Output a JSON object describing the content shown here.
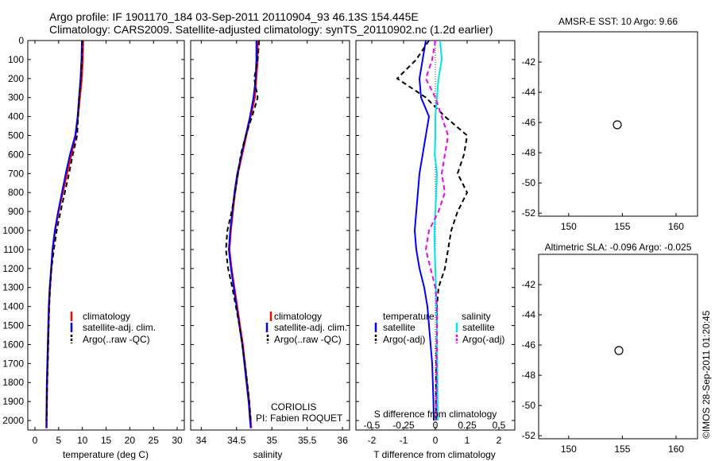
{
  "header": {
    "title_line1": "Argo profile: IF 1901170_184 03-Sep-2011 20110904_93 46.13S 154.445E",
    "title_line2": "Climatology: CARS2009. Satellite-adjusted climatology: synTS_20110902.nc (1.2d earlier)"
  },
  "credits": {
    "line1": "CORIOLIS",
    "line2": "PI: Fabien ROQUET",
    "stamp": "©IMOS 28-Sep-2011 01:20:45"
  },
  "colors": {
    "climatology": "#ff0000",
    "satellite": "#0000ff",
    "argo": "#000000",
    "salinity_satellite": "#00e5ee",
    "salinity_argo": "#ee00ee"
  },
  "chart_data": [
    {
      "id": "temperature",
      "type": "line",
      "xlabel": "temperature (deg C)",
      "xlim": [
        -1.5,
        31.5
      ],
      "xticks": [
        0,
        5,
        10,
        15,
        20,
        25,
        30
      ],
      "ylim": [
        2050,
        0
      ],
      "yticks": [
        0,
        100,
        200,
        300,
        400,
        500,
        600,
        700,
        800,
        900,
        1000,
        1100,
        1200,
        1300,
        1400,
        1500,
        1600,
        1700,
        1800,
        1900,
        2000
      ],
      "legend": [
        "climatology",
        "satellite-adj. clim.",
        "Argo(..raw -QC)"
      ],
      "series": [
        {
          "name": "climatology",
          "color": "#ff0000",
          "style": "solid",
          "x": [
            10.2,
            10.1,
            9.9,
            9.5,
            9.1,
            8.6,
            7.7,
            6.8,
            5.9,
            5.0,
            4.3,
            3.8,
            3.5,
            3.2,
            3.0,
            2.9,
            2.8,
            2.7,
            2.6,
            2.55,
            2.5,
            2.5
          ],
          "y": [
            0,
            100,
            200,
            300,
            400,
            500,
            600,
            700,
            800,
            900,
            1000,
            1100,
            1200,
            1300,
            1400,
            1500,
            1600,
            1700,
            1800,
            1900,
            2000,
            2040
          ]
        },
        {
          "name": "satellite-adj. clim.",
          "color": "#0000ff",
          "style": "solid",
          "x": [
            9.9,
            9.8,
            9.6,
            9.3,
            9.0,
            8.5,
            7.4,
            6.5,
            5.7,
            4.9,
            4.2,
            3.7,
            3.4,
            3.1,
            2.9,
            2.8,
            2.7,
            2.6,
            2.5,
            2.45,
            2.4,
            2.4
          ],
          "y": [
            0,
            100,
            200,
            300,
            400,
            500,
            600,
            700,
            800,
            900,
            1000,
            1100,
            1200,
            1300,
            1400,
            1500,
            1600,
            1700,
            1800,
            1900,
            2000,
            2040
          ]
        },
        {
          "name": "Argo(..raw -QC)",
          "color": "#000000",
          "style": "dashed",
          "x": [
            10.0,
            9.9,
            9.7,
            9.3,
            9.1,
            8.9,
            8.0,
            7.2,
            6.3,
            5.4,
            4.6,
            4.0,
            3.5,
            3.2,
            3.0,
            2.9,
            2.8,
            2.7,
            2.6,
            2.5,
            2.5
          ],
          "y": [
            0,
            100,
            200,
            300,
            400,
            500,
            600,
            700,
            800,
            900,
            1000,
            1100,
            1200,
            1300,
            1400,
            1500,
            1600,
            1700,
            1800,
            1900,
            2000
          ]
        }
      ]
    },
    {
      "id": "salinity",
      "type": "line",
      "xlabel": "salinity",
      "xlim": [
        33.85,
        36.1
      ],
      "xticks": [
        34,
        34.5,
        35,
        35.5,
        36
      ],
      "ylim": [
        2050,
        0
      ],
      "legend": [
        "climatology",
        "satellite-adj. clim.",
        "Argo(..raw -QC)"
      ],
      "series": [
        {
          "name": "climatology",
          "color": "#ff0000",
          "style": "solid",
          "x": [
            34.8,
            34.8,
            34.78,
            34.76,
            34.7,
            34.64,
            34.58,
            34.52,
            34.48,
            34.45,
            34.42,
            34.4,
            34.43,
            34.47,
            34.51,
            34.55,
            34.59,
            34.62,
            34.65,
            34.68,
            34.7,
            34.71
          ],
          "y": [
            0,
            100,
            200,
            300,
            400,
            500,
            600,
            700,
            800,
            900,
            1000,
            1100,
            1200,
            1300,
            1400,
            1500,
            1600,
            1700,
            1800,
            1900,
            2000,
            2040
          ]
        },
        {
          "name": "satellite-adj. clim.",
          "color": "#0000ff",
          "style": "solid",
          "x": [
            34.78,
            34.78,
            34.77,
            34.74,
            34.69,
            34.63,
            34.57,
            34.51,
            34.47,
            34.44,
            34.41,
            34.39,
            34.42,
            34.46,
            34.5,
            34.54,
            34.58,
            34.61,
            34.64,
            34.67,
            34.69,
            34.7
          ],
          "y": [
            0,
            100,
            200,
            300,
            400,
            500,
            600,
            700,
            800,
            900,
            1000,
            1100,
            1200,
            1300,
            1400,
            1500,
            1600,
            1700,
            1800,
            1900,
            2000,
            2040
          ]
        },
        {
          "name": "Argo(..raw -QC)",
          "color": "#000000",
          "style": "dashed",
          "x": [
            34.82,
            34.8,
            34.75,
            34.8,
            34.72,
            34.63,
            34.56,
            34.52,
            34.48,
            34.43,
            34.37,
            34.35,
            34.38,
            34.44,
            34.49,
            34.54,
            34.58,
            34.62,
            34.65,
            34.68,
            34.7
          ],
          "y": [
            0,
            100,
            200,
            300,
            400,
            500,
            600,
            700,
            800,
            900,
            1000,
            1100,
            1200,
            1300,
            1400,
            1500,
            1600,
            1700,
            1800,
            1900,
            2000
          ]
        }
      ]
    },
    {
      "id": "difference",
      "type": "line",
      "xlabel": "T difference from climatology",
      "x2label": "S difference from climatology",
      "xlim": [
        -2.5,
        2.5
      ],
      "xticks": [
        -2,
        -1,
        0,
        1,
        2
      ],
      "xtick_labels": [
        "-2",
        "-1",
        "0",
        "1",
        "2"
      ],
      "x2ticks": [
        -0.5,
        -0.25,
        0,
        0.25,
        0.5
      ],
      "x2tick_labels": [
        "-0.5",
        "-0.25",
        "0",
        "0.25",
        "0.5"
      ],
      "ylim": [
        2050,
        0
      ],
      "legend_groups": [
        {
          "title": "temperature",
          "entries": [
            "satellite",
            "Argo(-adj)"
          ]
        },
        {
          "title": "salinity",
          "entries": [
            "satellite",
            "Argo(-adj)"
          ]
        }
      ],
      "series": [
        {
          "name": "temperature satellite",
          "color": "#0000ff",
          "style": "solid",
          "x": [
            -0.3,
            -0.4,
            -0.5,
            -0.45,
            -0.2,
            -0.3,
            -0.4,
            -0.5,
            -0.55,
            -0.6,
            -0.65,
            -0.6,
            -0.5,
            -0.35,
            -0.25,
            -0.2,
            -0.15,
            -0.1,
            -0.08,
            -0.06,
            -0.05
          ],
          "y": [
            0,
            100,
            200,
            300,
            400,
            500,
            600,
            700,
            800,
            900,
            1000,
            1100,
            1200,
            1300,
            1400,
            1500,
            1600,
            1700,
            1800,
            1900,
            2000
          ]
        },
        {
          "name": "temperature Argo(-adj)",
          "color": "#000000",
          "style": "dashed",
          "x": [
            -0.2,
            -0.6,
            -1.2,
            -0.3,
            0.3,
            1.0,
            0.9,
            0.7,
            1.0,
            0.7,
            0.5,
            0.4,
            0.3,
            0.1,
            0.05,
            0.05,
            0.04,
            0.03,
            0.02,
            0.02,
            0.02
          ],
          "y": [
            0,
            100,
            200,
            300,
            400,
            500,
            600,
            700,
            800,
            900,
            1000,
            1100,
            1200,
            1300,
            1400,
            1500,
            1600,
            1700,
            1800,
            1900,
            2000
          ]
        },
        {
          "name": "salinity satellite",
          "color": "#00e5ee",
          "style": "solid",
          "x": [
            0.15,
            0.2,
            0.1,
            0.05,
            0.0,
            0.0,
            -0.02,
            0.05,
            0.03,
            0.0,
            -0.03,
            -0.02,
            0.0,
            0.02,
            0.03,
            0.05,
            0.05,
            0.06,
            0.07,
            0.07,
            0.08
          ],
          "y": [
            0,
            100,
            200,
            300,
            400,
            500,
            600,
            700,
            800,
            900,
            1000,
            1100,
            1200,
            1300,
            1400,
            1500,
            1600,
            1700,
            1800,
            1900,
            2000
          ]
        },
        {
          "name": "salinity Argo(-adj)",
          "color": "#ee00ee",
          "style": "dashed",
          "x": [
            0.0,
            -0.1,
            -0.3,
            0.0,
            0.2,
            0.4,
            0.3,
            0.2,
            0.3,
            0.1,
            -0.2,
            -0.3,
            -0.15,
            0.0,
            0.05,
            0.05,
            0.05,
            0.04,
            0.04,
            0.03,
            0.03
          ],
          "y": [
            0,
            100,
            200,
            300,
            400,
            500,
            600,
            700,
            800,
            900,
            1000,
            1100,
            1200,
            1300,
            1400,
            1500,
            1600,
            1700,
            1800,
            1900,
            2000
          ]
        }
      ]
    },
    {
      "id": "sst-map",
      "type": "heatmap",
      "title": "AMSR-E SST: 10 Argo: 9.66",
      "xlim": [
        147.2,
        162
      ],
      "ylim": [
        -52.2,
        -40
      ],
      "xticks": [
        150,
        155,
        160
      ],
      "yticks": [
        -42,
        -44,
        -46,
        -48,
        -50,
        -52
      ],
      "marker": {
        "lon": 154.445,
        "lat": -46.13
      }
    },
    {
      "id": "sla-map",
      "type": "heatmap",
      "title": "Altimetric SLA: -0.096 Argo: -0.025",
      "xlim": [
        147.2,
        162
      ],
      "ylim": [
        -52.2,
        -40
      ],
      "xticks": [
        150,
        155,
        160
      ],
      "yticks": [
        -42,
        -44,
        -46,
        -48,
        -50,
        -52
      ],
      "marker": {
        "lon": 154.445,
        "lat": -46.13
      }
    }
  ]
}
